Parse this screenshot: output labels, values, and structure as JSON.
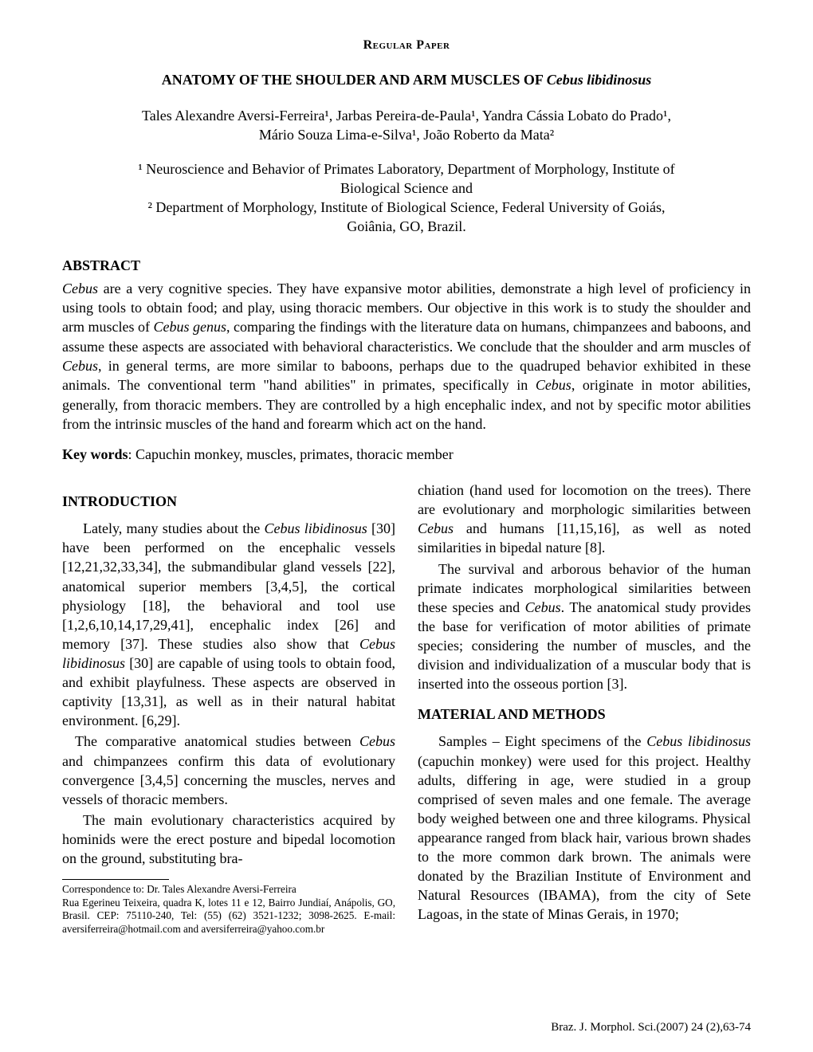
{
  "paper_type": "Regular Paper",
  "title_prefix": "ANATOMY OF THE SHOULDER AND ARM MUSCLES OF ",
  "title_species": "Cebus libidinosus",
  "authors_line1": "Tales Alexandre Aversi-Ferreira¹, Jarbas Pereira-de-Paula¹, Yandra Cássia Lobato do Prado¹,",
  "authors_line2": "Mário Souza Lima-e-Silva¹, João Roberto da Mata²",
  "affil1a": "¹ Neuroscience and Behavior of Primates Laboratory, Department of Morphology, Institute of",
  "affil1b": "Biological Science and",
  "affil2a": "² Department of Morphology, Institute of Biological Science, Federal University of Goiás,",
  "affil2b": "Goiânia, GO, Brazil.",
  "abstract_heading": "ABSTRACT",
  "abstract": {
    "s1a": "Cebus",
    "s1b": " are a very cognitive species. They have expansive motor abilities, demonstrate a high level of proficiency in using tools to obtain food; and play, using thoracic members. Our objective in this work is to study the shoulder and arm muscles of ",
    "s1c": "Cebus genus",
    "s1d": ", comparing the findings with the literature data on humans, chimpanzees and baboons, and assume these aspects are associated with behavioral characteristics. We conclude that the shoulder and arm muscles of ",
    "s1e": "Cebus",
    "s1f": ", in general terms, are more similar to baboons, perhaps due to the quadruped behavior exhibited in these animals. The conventional term \"hand abilities\" in primates, specifically in ",
    "s1g": "Cebus",
    "s1h": ", originate in motor abilities, generally, from thoracic members.  They are controlled by a high encephalic index, and not by specific motor abilities from the intrinsic muscles of the hand and forearm which act on the hand."
  },
  "keywords_label": "Key words",
  "keywords_text": ": Capuchin monkey, muscles, primates, thoracic member",
  "intro_heading": "INTRODUCTION",
  "col1": {
    "p1a": "Lately, many studies about the ",
    "p1b": "Cebus libidinosus",
    "p1c": " [30] have been performed on the encephalic vessels [12,21,32,33,34], the submandibular gland vessels [22], anatomical superior members [3,4,5], the cortical physiology [18], the behavioral and tool use [1,2,6,10,14,17,29,41], encephalic index [26] and memory [37]. These studies also show that ",
    "p1d": "Cebus libidinosus",
    "p1e": " [30] are capable of using tools to obtain food, and exhibit playfulness.  These aspects are observed in captivity [13,31], as well as in their natural habitat environment. [6,29].",
    "p2a": "The comparative anatomical studies between ",
    "p2b": "Cebus",
    "p2c": " and chimpanzees confirm this data of evolutionary convergence [3,4,5] concerning the muscles, nerves and vessels of thoracic members.",
    "p3": "The main evolutionary characteristics acquired by hominids were the erect posture and bipedal locomotion on the ground, substituting bra-"
  },
  "col2": {
    "p1a": "chiation (hand used for locomotion on the trees). There are evolutionary and morphologic similarities between ",
    "p1b": "Cebus",
    "p1c": " and humans [11,15,16], as well as noted similarities in bipedal nature [8].",
    "p2a": "The survival and arborous behavior of the human primate indicates morphological similarities between these species and ",
    "p2b": "Cebus",
    "p2c": ". The anatomical study provides the base for verification of motor abilities of primate species; considering the number of muscles, and the division and individualization of a muscular body that is inserted into the osseous portion [3].",
    "mm_heading": "MATERIAL AND METHODS",
    "p3a": "Samples – Eight specimens of the ",
    "p3b": "Cebus libidinosus",
    "p3c": " (capuchin monkey) were used for this project. Healthy adults, differing in age, were studied in a group comprised of seven males and one female. The average body weighed between one and three kilograms.  Physical appearance ranged from black hair, various brown shades to the more common dark brown. The animals were donated by the Brazilian Institute of Environment and Natural Resources (IBAMA), from the city of Sete Lagoas, in the state of Minas Gerais, in 1970;"
  },
  "correspondence": {
    "l1": "Correspondence to: Dr. Tales Alexandre Aversi-Ferreira",
    "l2": "Rua Egerineu Teixeira, quadra K, lotes 11 e 12, Bairro Jundiaí, Anápolis, GO, Brasil. CEP: 75110-240, Tel:  (55) (62) 3521-1232; 3098-2625. E-mail: aversiferreira@hotmail.com and aversiferreira@yahoo.com.br"
  },
  "footer": "Braz. J. Morphol. Sci.(2007) 24 (2),63-74"
}
